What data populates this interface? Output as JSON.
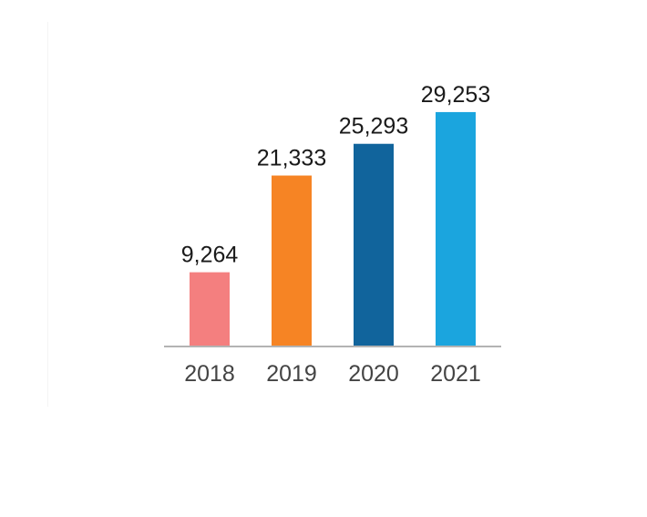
{
  "chart_data": {
    "type": "bar",
    "categories": [
      "2018",
      "2019",
      "2020",
      "2021"
    ],
    "values": [
      9264,
      21333,
      25293,
      29253
    ],
    "value_labels": [
      "9,264",
      "21,333",
      "25,293",
      "29,253"
    ],
    "bar_colors": [
      "#f47f7f",
      "#f68424",
      "#11649c",
      "#1ba5de"
    ],
    "axis_color": "#b3b3b3",
    "title": "",
    "xlabel": "",
    "ylabel": "",
    "ylim": [
      0,
      33000
    ],
    "grid": false,
    "legend": "none"
  }
}
